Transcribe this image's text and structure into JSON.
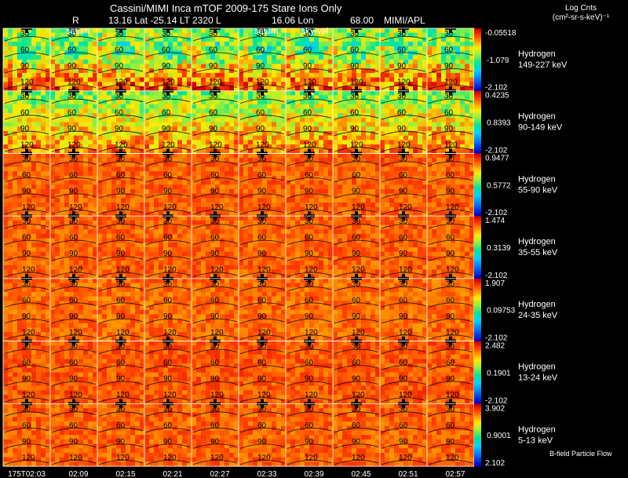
{
  "header": {
    "title": "Cassini/MIMI Inca mTOF  2009-175   Stare    Ions Only",
    "r_label": "R",
    "lat_lt": "13.16 Lat -25.14 LT 2320 L",
    "lon": "16.06 Lon",
    "val": "68.00",
    "org": "MIMI/APL"
  },
  "units": {
    "line1": "Log Cnts",
    "line2": "(cm²-sr-s-keV)⁻¹"
  },
  "chart_data": {
    "type": "heatmap",
    "title": "Cassini/MIMI Inca mTOF  2009-175   Stare    Ions Only",
    "columns": 10,
    "x_tick_labels": [
      "175T02:03",
      "02:09",
      "02:15",
      "02:21",
      "02:27",
      "02:33",
      "02:39",
      "02:45",
      "02:51",
      "02:57"
    ],
    "y_tick_labels": [
      "30",
      "60",
      "90",
      "120"
    ],
    "overlay_labels": [
      "saturn",
      "saturn",
      "sky-vel"
    ],
    "colorbar_note": "B-field Particle Flow",
    "rows": [
      {
        "species": "Hydrogen",
        "energy": "149-227 keV",
        "max": "-0.05518",
        "mid": "-1.079",
        "min": "-2.102",
        "level": 0.45
      },
      {
        "species": "Hydrogen",
        "energy": "90-149 keV",
        "max": "0.4235",
        "mid": "0.8393",
        "min": "-2.102",
        "level": 0.68
      },
      {
        "species": "Hydrogen",
        "energy": "55-90 keV",
        "max": "0.9477",
        "mid": "0.5772",
        "min": "-2.102",
        "level": 0.86
      },
      {
        "species": "Hydrogen",
        "energy": "35-55 keV",
        "max": "1.474",
        "mid": "0.3139",
        "min": "-2.102",
        "level": 0.86
      },
      {
        "species": "Hydrogen",
        "energy": "24-35 keV",
        "max": "1.907",
        "mid": "0.09753",
        "min": "-2.102",
        "level": 0.85
      },
      {
        "species": "Hydrogen",
        "energy": "13-24 keV",
        "max": "2.482",
        "mid": "0.1901",
        "min": "-2.102",
        "level": 0.87
      },
      {
        "species": "Hydrogen",
        "energy": "5-13 keV",
        "max": "3.902",
        "mid": "0.9001",
        "min": "2.102",
        "level": 0.86
      }
    ]
  }
}
